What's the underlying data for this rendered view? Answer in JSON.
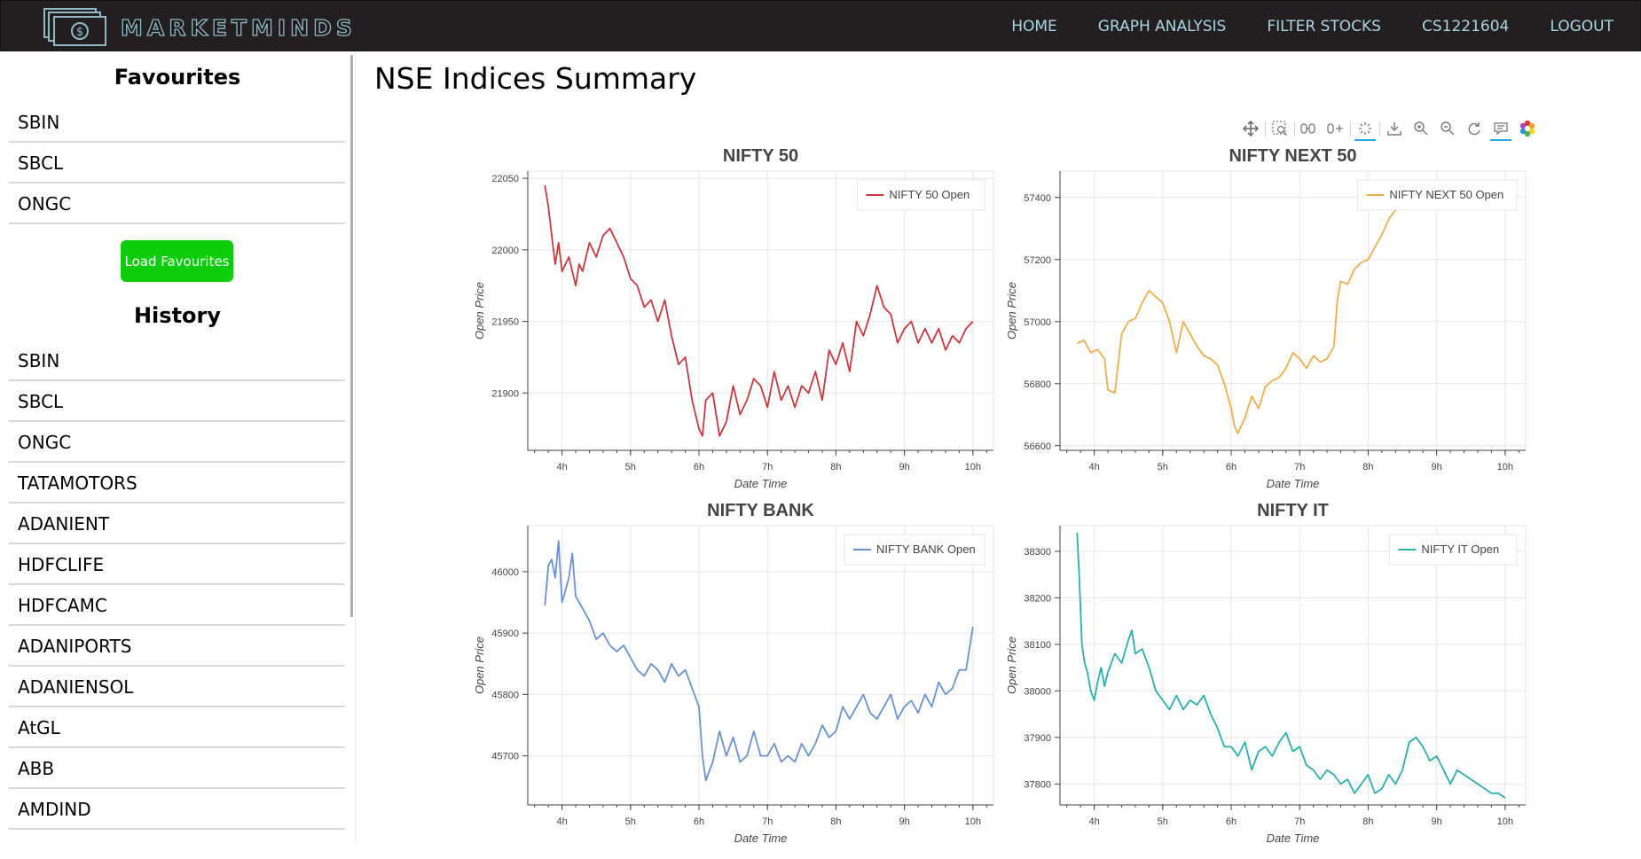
{
  "brand": {
    "name": "MARKETMINDS"
  },
  "nav": {
    "items": [
      "HOME",
      "GRAPH ANALYSIS",
      "FILTER STOCKS",
      "CS1221604",
      "LOGOUT"
    ]
  },
  "sidebar": {
    "favourites_title": "Favourites",
    "favourites": [
      "SBIN",
      "SBCL",
      "ONGC"
    ],
    "load_button": "Load Favourites",
    "history_title": "History",
    "history": [
      "SBIN",
      "SBCL",
      "ONGC",
      "TATAMOTORS",
      "ADANIENT",
      "HDFCLIFE",
      "HDFCAMC",
      "ADANIPORTS",
      "ADANIENSOL",
      "AtGL",
      "ABB",
      "AMDIND"
    ]
  },
  "main": {
    "title": "NSE Indices Summary"
  },
  "toolbar": {
    "tools": [
      "pan-icon",
      "box-zoom-icon",
      "x-wheel-zoom-icon",
      "y-wheel-zoom-icon",
      "reset-select-icon",
      "save-icon",
      "zoom-in-icon",
      "zoom-out-icon",
      "reset-icon",
      "hover-icon",
      "bokeh-logo-icon"
    ],
    "active": [
      "pan-icon",
      "reset-select-icon",
      "hover-icon"
    ],
    "accent": "#26aae1"
  },
  "chart_data": [
    {
      "type": "line",
      "title": "NIFTY 50",
      "xlabel": "Date Time",
      "ylabel": "Open Price",
      "x_ticks": [
        "4h",
        "5h",
        "6h",
        "7h",
        "8h",
        "9h",
        "10h"
      ],
      "xlim": [
        3.5,
        10.3
      ],
      "ylim": [
        21860,
        22055
      ],
      "y_ticks": [
        21900,
        21950,
        22000,
        22050
      ],
      "legend_position": "top-right",
      "grid": true,
      "series": [
        {
          "name": "NIFTY 50 Open",
          "color": "#c8393f",
          "x": [
            3.75,
            3.8,
            3.85,
            3.9,
            3.95,
            4.0,
            4.1,
            4.2,
            4.25,
            4.3,
            4.4,
            4.5,
            4.6,
            4.7,
            4.8,
            4.9,
            5.0,
            5.1,
            5.2,
            5.3,
            5.4,
            5.5,
            5.6,
            5.7,
            5.8,
            5.9,
            6.0,
            6.05,
            6.1,
            6.2,
            6.3,
            6.4,
            6.5,
            6.6,
            6.7,
            6.8,
            6.9,
            7.0,
            7.1,
            7.2,
            7.3,
            7.4,
            7.5,
            7.6,
            7.7,
            7.8,
            7.9,
            8.0,
            8.1,
            8.2,
            8.3,
            8.4,
            8.5,
            8.6,
            8.7,
            8.8,
            8.9,
            9.0,
            9.1,
            9.2,
            9.3,
            9.4,
            9.5,
            9.6,
            9.7,
            9.8,
            9.9,
            10.0
          ],
          "values": [
            22045,
            22030,
            22010,
            21990,
            22005,
            21985,
            21995,
            21975,
            21990,
            21985,
            22005,
            21995,
            22010,
            22015,
            22005,
            21995,
            21980,
            21975,
            21960,
            21965,
            21950,
            21965,
            21940,
            21920,
            21925,
            21895,
            21875,
            21870,
            21895,
            21900,
            21870,
            21880,
            21905,
            21885,
            21895,
            21910,
            21905,
            21890,
            21915,
            21895,
            21905,
            21890,
            21905,
            21900,
            21915,
            21895,
            21930,
            21920,
            21935,
            21915,
            21950,
            21940,
            21955,
            21975,
            21960,
            21955,
            21935,
            21945,
            21950,
            21935,
            21945,
            21935,
            21945,
            21930,
            21940,
            21935,
            21945,
            21950
          ]
        }
      ]
    },
    {
      "type": "line",
      "title": "NIFTY NEXT 50",
      "xlabel": "Date Time",
      "ylabel": "Open Price",
      "x_ticks": [
        "4h",
        "5h",
        "6h",
        "7h",
        "8h",
        "9h",
        "10h"
      ],
      "xlim": [
        3.5,
        10.3
      ],
      "ylim": [
        56585,
        57485
      ],
      "y_ticks": [
        56600,
        56800,
        57000,
        57200,
        57400
      ],
      "legend_position": "top-right",
      "grid": true,
      "series": [
        {
          "name": "NIFTY NEXT 50 Open",
          "color": "#f0ad4e",
          "x": [
            3.75,
            3.85,
            3.95,
            4.05,
            4.15,
            4.2,
            4.3,
            4.4,
            4.5,
            4.6,
            4.7,
            4.8,
            4.9,
            5.0,
            5.1,
            5.2,
            5.3,
            5.4,
            5.5,
            5.6,
            5.7,
            5.8,
            5.9,
            6.0,
            6.05,
            6.1,
            6.2,
            6.3,
            6.4,
            6.5,
            6.6,
            6.7,
            6.8,
            6.9,
            7.0,
            7.1,
            7.2,
            7.3,
            7.4,
            7.5,
            7.55,
            7.6,
            7.7,
            7.8,
            7.9,
            8.0,
            8.1,
            8.2,
            8.3,
            8.4,
            8.5,
            8.6,
            8.7,
            8.8,
            8.9,
            9.0,
            9.1,
            9.2,
            9.3,
            9.4,
            9.5,
            9.6,
            9.7,
            9.8,
            9.9,
            9.95
          ],
          "values": [
            56930,
            56940,
            56900,
            56910,
            56880,
            56780,
            56770,
            56960,
            57000,
            57010,
            57060,
            57100,
            57080,
            57060,
            57000,
            56900,
            57000,
            56960,
            56920,
            56890,
            56880,
            56860,
            56800,
            56720,
            56660,
            56640,
            56690,
            56760,
            56720,
            56790,
            56810,
            56820,
            56850,
            56900,
            56880,
            56850,
            56890,
            56870,
            56880,
            56920,
            57070,
            57130,
            57120,
            57170,
            57190,
            57200,
            57240,
            57280,
            57330,
            57360,
            57380,
            57370,
            57390,
            57400,
            57380,
            57390,
            57370,
            57390,
            57380,
            57400,
            57360,
            57390,
            57380,
            57370,
            57380,
            57360
          ]
        }
      ]
    },
    {
      "type": "line",
      "title": "NIFTY BANK",
      "xlabel": "Date Time",
      "ylabel": "Open Price",
      "x_ticks": [
        "4h",
        "5h",
        "6h",
        "7h",
        "8h",
        "9h",
        "10h"
      ],
      "xlim": [
        3.5,
        10.3
      ],
      "ylim": [
        45620,
        46075
      ],
      "y_ticks": [
        45700,
        45800,
        45900,
        46000
      ],
      "legend_position": "top-right",
      "grid": true,
      "series": [
        {
          "name": "NIFTY BANK Open",
          "color": "#6a92cf",
          "x": [
            3.75,
            3.8,
            3.85,
            3.9,
            3.95,
            4.0,
            4.05,
            4.1,
            4.15,
            4.2,
            4.3,
            4.4,
            4.5,
            4.6,
            4.7,
            4.8,
            4.9,
            5.0,
            5.1,
            5.2,
            5.3,
            5.4,
            5.5,
            5.6,
            5.7,
            5.8,
            5.9,
            6.0,
            6.05,
            6.1,
            6.2,
            6.3,
            6.4,
            6.5,
            6.6,
            6.7,
            6.8,
            6.9,
            7.0,
            7.1,
            7.2,
            7.3,
            7.4,
            7.5,
            7.6,
            7.7,
            7.8,
            7.9,
            8.0,
            8.1,
            8.2,
            8.3,
            8.4,
            8.5,
            8.6,
            8.7,
            8.8,
            8.9,
            9.0,
            9.1,
            9.2,
            9.3,
            9.4,
            9.5,
            9.6,
            9.7,
            9.8,
            9.9,
            10.0
          ],
          "values": [
            45945,
            46010,
            46020,
            45990,
            46050,
            45950,
            45970,
            45990,
            46030,
            45960,
            45940,
            45920,
            45890,
            45900,
            45880,
            45870,
            45880,
            45860,
            45840,
            45830,
            45850,
            45840,
            45820,
            45850,
            45830,
            45840,
            45810,
            45780,
            45700,
            45660,
            45690,
            45740,
            45700,
            45730,
            45690,
            45700,
            45740,
            45700,
            45700,
            45720,
            45690,
            45700,
            45690,
            45720,
            45700,
            45720,
            45750,
            45730,
            45740,
            45780,
            45760,
            45780,
            45800,
            45770,
            45760,
            45780,
            45800,
            45760,
            45780,
            45790,
            45770,
            45800,
            45780,
            45820,
            45800,
            45810,
            45840,
            45840,
            45910
          ]
        }
      ]
    },
    {
      "type": "line",
      "title": "NIFTY IT",
      "xlabel": "Date Time",
      "ylabel": "Open Price",
      "x_ticks": [
        "4h",
        "5h",
        "6h",
        "7h",
        "8h",
        "9h",
        "10h"
      ],
      "xlim": [
        3.5,
        10.3
      ],
      "ylim": [
        37755,
        38355
      ],
      "y_ticks": [
        37800,
        37900,
        38000,
        38100,
        38200,
        38300
      ],
      "legend_position": "top-right",
      "grid": true,
      "series": [
        {
          "name": "NIFTY IT Open",
          "color": "#2aaeae",
          "x": [
            3.75,
            3.78,
            3.82,
            3.86,
            3.9,
            3.95,
            4.0,
            4.05,
            4.1,
            4.15,
            4.2,
            4.3,
            4.4,
            4.5,
            4.55,
            4.6,
            4.7,
            4.8,
            4.9,
            5.0,
            5.1,
            5.2,
            5.3,
            5.4,
            5.5,
            5.6,
            5.7,
            5.8,
            5.9,
            6.0,
            6.1,
            6.2,
            6.3,
            6.4,
            6.5,
            6.6,
            6.7,
            6.8,
            6.9,
            7.0,
            7.1,
            7.2,
            7.3,
            7.4,
            7.5,
            7.6,
            7.7,
            7.8,
            7.9,
            8.0,
            8.1,
            8.2,
            8.3,
            8.4,
            8.5,
            8.6,
            8.7,
            8.8,
            8.9,
            9.0,
            9.1,
            9.2,
            9.3,
            9.4,
            9.5,
            9.6,
            9.7,
            9.8,
            9.9,
            10.0
          ],
          "values": [
            38340,
            38250,
            38100,
            38060,
            38040,
            38000,
            37980,
            38020,
            38050,
            38010,
            38040,
            38080,
            38060,
            38110,
            38130,
            38080,
            38090,
            38050,
            38000,
            37980,
            37960,
            37990,
            37960,
            37980,
            37970,
            37990,
            37950,
            37920,
            37880,
            37880,
            37860,
            37890,
            37830,
            37870,
            37880,
            37860,
            37890,
            37910,
            37870,
            37880,
            37840,
            37830,
            37810,
            37830,
            37820,
            37800,
            37810,
            37780,
            37800,
            37820,
            37780,
            37790,
            37820,
            37800,
            37830,
            37890,
            37900,
            37880,
            37850,
            37860,
            37830,
            37800,
            37830,
            37820,
            37810,
            37800,
            37790,
            37780,
            37780,
            37770
          ]
        }
      ]
    }
  ]
}
